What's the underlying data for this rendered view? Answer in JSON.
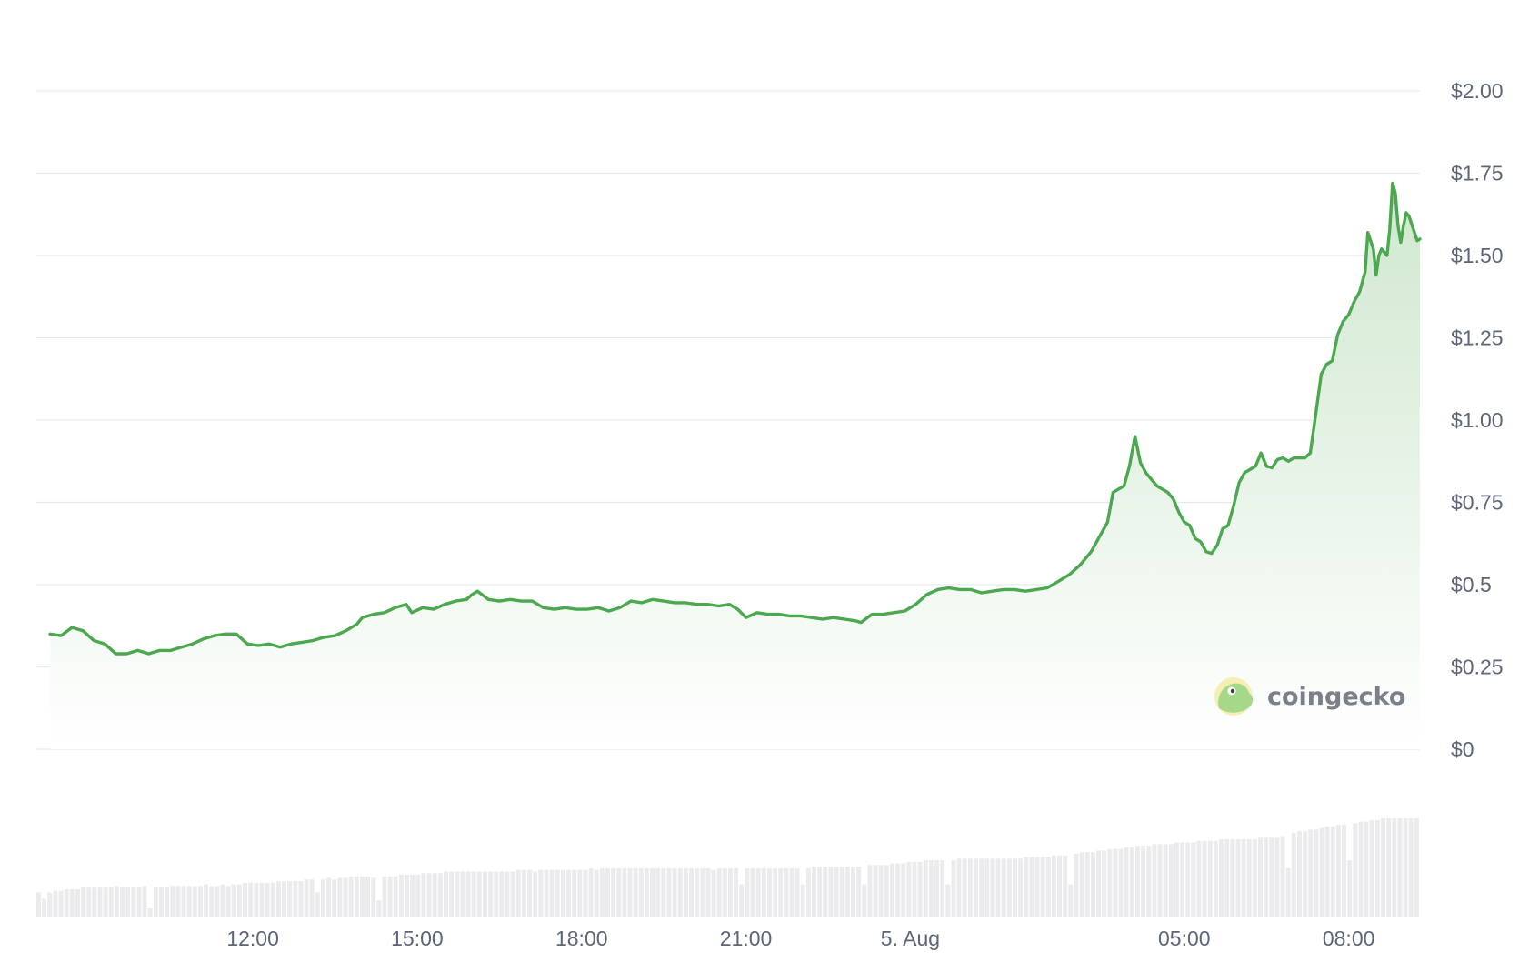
{
  "chart_data": {
    "type": "area",
    "y_axis": {
      "min": 0,
      "max": 2.0,
      "position": "right",
      "ticks": [
        {
          "value": 0,
          "label": "$0"
        },
        {
          "value": 0.25,
          "label": "$0.25"
        },
        {
          "value": 0.5,
          "label": "$0.5"
        },
        {
          "value": 0.75,
          "label": "$0.75"
        },
        {
          "value": 1.0,
          "label": "$1.00"
        },
        {
          "value": 1.25,
          "label": "$1.25"
        },
        {
          "value": 1.5,
          "label": "$1.50"
        },
        {
          "value": 1.75,
          "label": "$1.75"
        },
        {
          "value": 2.0,
          "label": "$2.00"
        }
      ]
    },
    "x_axis": {
      "start_hour": 8.3,
      "end_hour": 32.7,
      "ticks": [
        {
          "hour": 12,
          "label": "12:00"
        },
        {
          "hour": 15,
          "label": "15:00"
        },
        {
          "hour": 18,
          "label": "18:00"
        },
        {
          "hour": 21,
          "label": "21:00"
        },
        {
          "hour": 24,
          "label": "5. Aug"
        },
        {
          "hour": 29,
          "label": "05:00"
        },
        {
          "hour": 32,
          "label": "08:00"
        }
      ]
    },
    "grid": true,
    "legend": "none",
    "colors": {
      "line": "#4ba84f",
      "area_top": "#cfe7cf",
      "area_bottom": "#ffffff",
      "volume": "#ebebed",
      "grid": "#e7e9ee",
      "tick_text": "#5d6677"
    },
    "series": [
      {
        "points": [
          [
            8.3,
            0.35
          ],
          [
            8.5,
            0.345
          ],
          [
            8.7,
            0.37
          ],
          [
            8.9,
            0.36
          ],
          [
            9.1,
            0.33
          ],
          [
            9.3,
            0.32
          ],
          [
            9.5,
            0.29
          ],
          [
            9.7,
            0.29
          ],
          [
            9.9,
            0.3
          ],
          [
            10.1,
            0.29
          ],
          [
            10.3,
            0.3
          ],
          [
            10.5,
            0.3
          ],
          [
            10.7,
            0.31
          ],
          [
            10.9,
            0.32
          ],
          [
            11.1,
            0.335
          ],
          [
            11.3,
            0.345
          ],
          [
            11.5,
            0.35
          ],
          [
            11.7,
            0.35
          ],
          [
            11.9,
            0.32
          ],
          [
            12.1,
            0.315
          ],
          [
            12.3,
            0.32
          ],
          [
            12.5,
            0.31
          ],
          [
            12.7,
            0.32
          ],
          [
            12.9,
            0.325
          ],
          [
            13.1,
            0.33
          ],
          [
            13.3,
            0.34
          ],
          [
            13.5,
            0.345
          ],
          [
            13.7,
            0.36
          ],
          [
            13.9,
            0.38
          ],
          [
            14.0,
            0.4
          ],
          [
            14.2,
            0.41
          ],
          [
            14.4,
            0.415
          ],
          [
            14.6,
            0.43
          ],
          [
            14.8,
            0.44
          ],
          [
            14.9,
            0.415
          ],
          [
            15.1,
            0.43
          ],
          [
            15.3,
            0.425
          ],
          [
            15.5,
            0.44
          ],
          [
            15.7,
            0.45
          ],
          [
            15.9,
            0.455
          ],
          [
            16.0,
            0.47
          ],
          [
            16.1,
            0.48
          ],
          [
            16.3,
            0.455
          ],
          [
            16.5,
            0.45
          ],
          [
            16.7,
            0.455
          ],
          [
            16.9,
            0.45
          ],
          [
            17.1,
            0.45
          ],
          [
            17.3,
            0.43
          ],
          [
            17.5,
            0.425
          ],
          [
            17.7,
            0.43
          ],
          [
            17.9,
            0.425
          ],
          [
            18.1,
            0.425
          ],
          [
            18.3,
            0.43
          ],
          [
            18.5,
            0.42
          ],
          [
            18.7,
            0.43
          ],
          [
            18.9,
            0.45
          ],
          [
            19.1,
            0.445
          ],
          [
            19.3,
            0.455
          ],
          [
            19.5,
            0.45
          ],
          [
            19.7,
            0.445
          ],
          [
            19.9,
            0.445
          ],
          [
            20.1,
            0.44
          ],
          [
            20.3,
            0.44
          ],
          [
            20.5,
            0.435
          ],
          [
            20.7,
            0.44
          ],
          [
            20.85,
            0.425
          ],
          [
            21.0,
            0.4
          ],
          [
            21.2,
            0.415
          ],
          [
            21.4,
            0.41
          ],
          [
            21.6,
            0.41
          ],
          [
            21.8,
            0.405
          ],
          [
            22.0,
            0.405
          ],
          [
            22.2,
            0.4
          ],
          [
            22.4,
            0.395
          ],
          [
            22.6,
            0.4
          ],
          [
            22.8,
            0.395
          ],
          [
            23.0,
            0.39
          ],
          [
            23.1,
            0.385
          ],
          [
            23.3,
            0.41
          ],
          [
            23.5,
            0.41
          ],
          [
            23.7,
            0.415
          ],
          [
            23.9,
            0.42
          ],
          [
            24.1,
            0.44
          ],
          [
            24.3,
            0.47
          ],
          [
            24.5,
            0.485
          ],
          [
            24.7,
            0.49
          ],
          [
            24.9,
            0.485
          ],
          [
            25.1,
            0.485
          ],
          [
            25.3,
            0.475
          ],
          [
            25.5,
            0.48
          ],
          [
            25.7,
            0.485
          ],
          [
            25.9,
            0.485
          ],
          [
            26.1,
            0.48
          ],
          [
            26.3,
            0.485
          ],
          [
            26.5,
            0.49
          ],
          [
            26.7,
            0.51
          ],
          [
            26.9,
            0.53
          ],
          [
            27.1,
            0.56
          ],
          [
            27.3,
            0.6
          ],
          [
            27.5,
            0.66
          ],
          [
            27.6,
            0.69
          ],
          [
            27.7,
            0.78
          ],
          [
            27.9,
            0.8
          ],
          [
            28.0,
            0.86
          ],
          [
            28.1,
            0.95
          ],
          [
            28.2,
            0.87
          ],
          [
            28.3,
            0.84
          ],
          [
            28.4,
            0.82
          ],
          [
            28.5,
            0.8
          ],
          [
            28.7,
            0.78
          ],
          [
            28.8,
            0.76
          ],
          [
            28.9,
            0.72
          ],
          [
            29.0,
            0.69
          ],
          [
            29.1,
            0.68
          ],
          [
            29.2,
            0.64
          ],
          [
            29.3,
            0.63
          ],
          [
            29.4,
            0.6
          ],
          [
            29.5,
            0.595
          ],
          [
            29.6,
            0.62
          ],
          [
            29.7,
            0.67
          ],
          [
            29.8,
            0.68
          ],
          [
            29.9,
            0.74
          ],
          [
            30.0,
            0.81
          ],
          [
            30.1,
            0.84
          ],
          [
            30.2,
            0.85
          ],
          [
            30.3,
            0.86
          ],
          [
            30.4,
            0.9
          ],
          [
            30.5,
            0.86
          ],
          [
            30.6,
            0.855
          ],
          [
            30.7,
            0.88
          ],
          [
            30.8,
            0.885
          ],
          [
            30.9,
            0.875
          ],
          [
            31.0,
            0.885
          ],
          [
            31.2,
            0.885
          ],
          [
            31.3,
            0.9
          ],
          [
            31.4,
            1.02
          ],
          [
            31.5,
            1.14
          ],
          [
            31.6,
            1.17
          ],
          [
            31.7,
            1.18
          ],
          [
            31.8,
            1.26
          ],
          [
            31.9,
            1.3
          ],
          [
            32.0,
            1.32
          ],
          [
            32.1,
            1.36
          ],
          [
            32.2,
            1.39
          ],
          [
            32.3,
            1.45
          ],
          [
            32.35,
            1.57
          ],
          [
            32.45,
            1.52
          ],
          [
            32.5,
            1.44
          ],
          [
            32.55,
            1.5
          ],
          [
            32.6,
            1.52
          ],
          [
            32.65,
            1.51
          ],
          [
            32.7,
            1.5
          ],
          [
            32.75,
            1.58
          ],
          [
            32.8,
            1.72
          ],
          [
            32.85,
            1.69
          ],
          [
            32.9,
            1.59
          ],
          [
            32.95,
            1.54
          ],
          [
            33.0,
            1.59
          ],
          [
            33.05,
            1.63
          ],
          [
            33.1,
            1.62
          ],
          [
            33.2,
            1.57
          ],
          [
            33.25,
            1.545
          ],
          [
            33.3,
            1.55
          ]
        ]
      }
    ],
    "volume_values": [
      0.3,
      0.22,
      0.3,
      0.32,
      0.32,
      0.34,
      0.34,
      0.34,
      0.36,
      0.36,
      0.36,
      0.36,
      0.36,
      0.36,
      0.38,
      0.36,
      0.36,
      0.36,
      0.36,
      0.38,
      0.1,
      0.36,
      0.36,
      0.36,
      0.38,
      0.38,
      0.38,
      0.38,
      0.38,
      0.38,
      0.4,
      0.38,
      0.38,
      0.4,
      0.38,
      0.4,
      0.4,
      0.42,
      0.42,
      0.42,
      0.42,
      0.42,
      0.42,
      0.44,
      0.44,
      0.44,
      0.44,
      0.44,
      0.46,
      0.46,
      0.3,
      0.46,
      0.48,
      0.46,
      0.48,
      0.48,
      0.5,
      0.5,
      0.5,
      0.5,
      0.48,
      0.2,
      0.5,
      0.5,
      0.5,
      0.52,
      0.52,
      0.52,
      0.52,
      0.54,
      0.54,
      0.54,
      0.54,
      0.56,
      0.56,
      0.56,
      0.56,
      0.56,
      0.56,
      0.56,
      0.56,
      0.56,
      0.56,
      0.56,
      0.56,
      0.56,
      0.58,
      0.58,
      0.58,
      0.56,
      0.58,
      0.58,
      0.58,
      0.58,
      0.58,
      0.58,
      0.58,
      0.58,
      0.58,
      0.6,
      0.58,
      0.6,
      0.6,
      0.6,
      0.6,
      0.6,
      0.6,
      0.6,
      0.6,
      0.6,
      0.6,
      0.6,
      0.6,
      0.6,
      0.6,
      0.6,
      0.6,
      0.6,
      0.6,
      0.6,
      0.6,
      0.58,
      0.6,
      0.6,
      0.6,
      0.6,
      0.4,
      0.6,
      0.6,
      0.6,
      0.6,
      0.6,
      0.6,
      0.6,
      0.6,
      0.6,
      0.6,
      0.4,
      0.6,
      0.62,
      0.62,
      0.62,
      0.62,
      0.62,
      0.62,
      0.62,
      0.62,
      0.62,
      0.4,
      0.64,
      0.64,
      0.64,
      0.64,
      0.66,
      0.66,
      0.66,
      0.68,
      0.68,
      0.68,
      0.7,
      0.7,
      0.7,
      0.7,
      0.4,
      0.7,
      0.72,
      0.72,
      0.72,
      0.72,
      0.72,
      0.72,
      0.72,
      0.72,
      0.72,
      0.72,
      0.72,
      0.72,
      0.74,
      0.74,
      0.74,
      0.74,
      0.74,
      0.76,
      0.76,
      0.76,
      0.4,
      0.78,
      0.8,
      0.8,
      0.8,
      0.82,
      0.82,
      0.84,
      0.84,
      0.84,
      0.86,
      0.86,
      0.88,
      0.88,
      0.88,
      0.9,
      0.9,
      0.9,
      0.9,
      0.92,
      0.92,
      0.92,
      0.92,
      0.94,
      0.94,
      0.94,
      0.94,
      0.96,
      0.96,
      0.96,
      0.96,
      0.96,
      0.96,
      0.96,
      0.98,
      0.98,
      0.98,
      0.98,
      1.0,
      0.6,
      1.04,
      1.06,
      1.06,
      1.08,
      1.08,
      1.1,
      1.12,
      1.12,
      1.14,
      1.14,
      0.7,
      1.16,
      1.18,
      1.18,
      1.2,
      1.2,
      1.22,
      1.22,
      1.22,
      1.22,
      1.22,
      1.22,
      1.22
    ]
  },
  "brand": {
    "name": "coingecko"
  }
}
